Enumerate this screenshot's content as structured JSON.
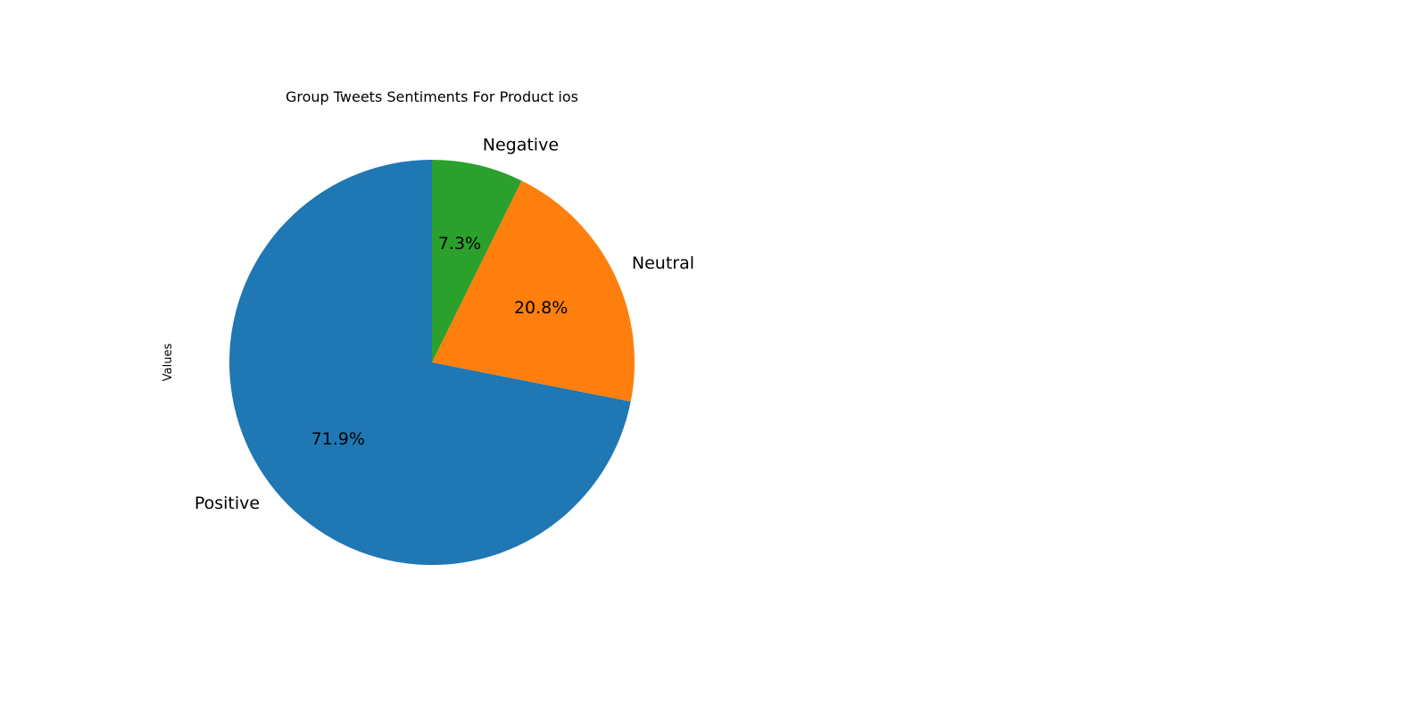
{
  "chart_data": {
    "type": "pie",
    "title": "Group Tweets Sentiments For Product ios",
    "ylabel": "Values",
    "start_angle_deg": 90,
    "direction": "counterclockwise",
    "slices": [
      {
        "label": "Positive",
        "value": 71.9,
        "pct_label": "71.9%",
        "color": "#1f77b4"
      },
      {
        "label": "Neutral",
        "value": 20.8,
        "pct_label": "20.8%",
        "color": "#ff7f0e"
      },
      {
        "label": "Negative",
        "value": 7.3,
        "pct_label": "7.3%",
        "color": "#2ca02c"
      }
    ]
  }
}
